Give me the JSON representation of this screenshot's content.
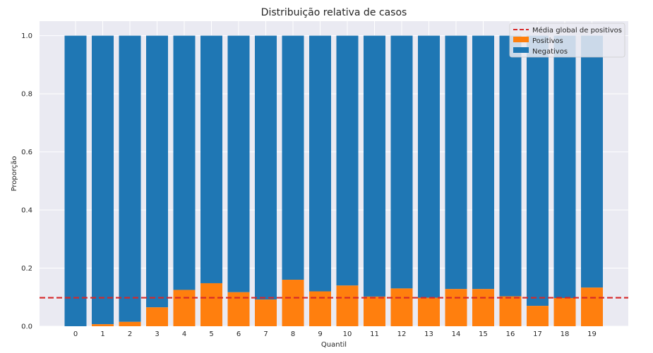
{
  "chart_data": {
    "type": "bar",
    "stacked": true,
    "title": "Distribuição relativa de casos",
    "xlabel": "Quantil",
    "ylabel": "Proporção",
    "ylim": [
      0,
      1.05
    ],
    "yticks": [
      "0.0",
      "0.2",
      "0.4",
      "0.6",
      "0.8",
      "1.0"
    ],
    "categories": [
      "0",
      "1",
      "2",
      "3",
      "4",
      "5",
      "6",
      "7",
      "8",
      "9",
      "10",
      "11",
      "12",
      "13",
      "14",
      "15",
      "16",
      "17",
      "18",
      "19"
    ],
    "series": [
      {
        "name": "Positivos",
        "color": "#ff7f0e",
        "values": [
          0.0,
          0.007,
          0.015,
          0.065,
          0.125,
          0.148,
          0.117,
          0.092,
          0.16,
          0.12,
          0.14,
          0.102,
          0.13,
          0.098,
          0.128,
          0.128,
          0.103,
          0.07,
          0.097,
          0.133
        ]
      },
      {
        "name": "Negativos",
        "color": "#1f77b4",
        "values": [
          1.0,
          0.993,
          0.985,
          0.935,
          0.875,
          0.852,
          0.883,
          0.908,
          0.84,
          0.88,
          0.86,
          0.898,
          0.87,
          0.902,
          0.872,
          0.872,
          0.897,
          0.93,
          0.903,
          0.867
        ]
      }
    ],
    "reference_line": {
      "name": "Média global de positivos",
      "value": 0.098,
      "color": "#d62728",
      "style": "dashed"
    },
    "grid": true,
    "legend_position": "top-right",
    "background": "#eaeaf2"
  }
}
